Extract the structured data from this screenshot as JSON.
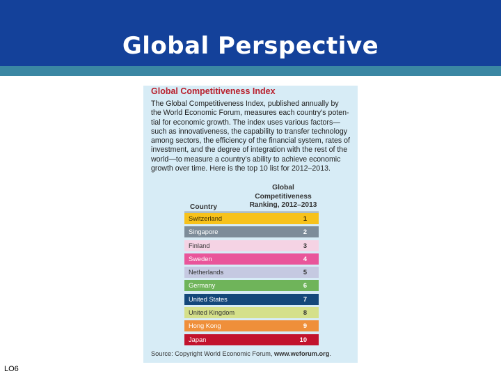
{
  "slide": {
    "title": "Global Perspective",
    "footer_label": "LO6"
  },
  "panel": {
    "title": "Global Competitiveness Index",
    "body_lines": [
      "The Global Competitiveness Index, published annually by",
      "the World Economic Forum, measures each country’s poten-",
      "tial for economic growth. The index uses various factors—",
      "such as innovativeness, the capability to transfer technology",
      "among sectors, the efficiency of the financial system, rates of",
      "investment, and the degree of integration with the rest of the",
      "world—to measure a country’s ability to achieve economic",
      "growth over time. Here is the top 10 list for 2012–2013."
    ],
    "table": {
      "country_header": "Country",
      "rank_header_lines": [
        "Global",
        "Competitiveness",
        "Ranking, 2012–2013"
      ],
      "rows": [
        {
          "country": "Switzerland",
          "rank": "1",
          "bg": "#f7c21b",
          "fg": "#3a2a00"
        },
        {
          "country": "Singapore",
          "rank": "2",
          "bg": "#7d8c99",
          "fg": "#ffffff"
        },
        {
          "country": "Finland",
          "rank": "3",
          "bg": "#f5d3e4",
          "fg": "#333333"
        },
        {
          "country": "Sweden",
          "rank": "4",
          "bg": "#e9559a",
          "fg": "#ffffff"
        },
        {
          "country": "Netherlands",
          "rank": "5",
          "bg": "#c5c9e1",
          "fg": "#333333"
        },
        {
          "country": "Germany",
          "rank": "6",
          "bg": "#6fb45a",
          "fg": "#ffffff"
        },
        {
          "country": "United States",
          "rank": "7",
          "bg": "#14487a",
          "fg": "#ffffff"
        },
        {
          "country": "United Kingdom",
          "rank": "8",
          "bg": "#d5e08a",
          "fg": "#333333"
        },
        {
          "country": "Hong Kong",
          "rank": "9",
          "bg": "#ef8f3a",
          "fg": "#ffffff"
        },
        {
          "country": "Japan",
          "rank": "10",
          "bg": "#c2132d",
          "fg": "#ffffff"
        }
      ]
    },
    "source_prefix": "Source: Copyright World Economic Forum, ",
    "source_site": "www.weforum.org",
    "source_suffix": "."
  },
  "colors": {
    "header_bg": "#14419a",
    "header_stripe": "#3b87a3",
    "panel_bg": "#d7ecf6",
    "panel_title": "#b8202d"
  }
}
